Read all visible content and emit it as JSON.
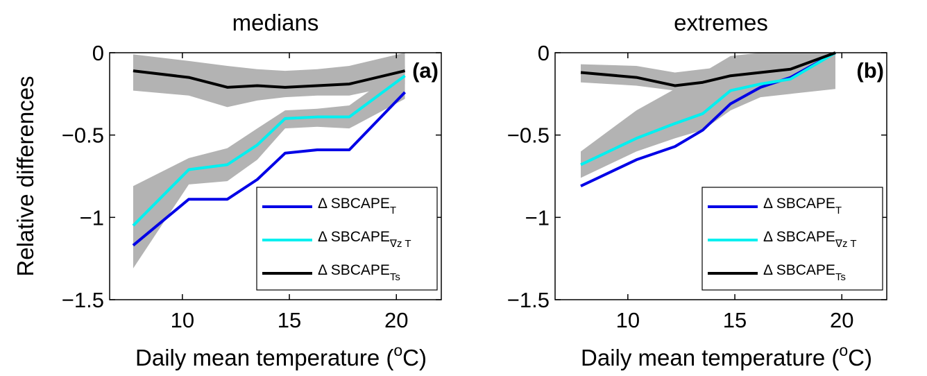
{
  "chart_data": [
    {
      "type": "line",
      "title": "medians",
      "annotation": "(a)",
      "y_label": "Relative differences",
      "x_label": {
        "text": "Daily mean temperature (",
        "sup": "o",
        "end": "C)"
      },
      "xlim": [
        6.6,
        22.1
      ],
      "xticks": [
        10,
        15,
        20
      ],
      "ylim": [
        -1.5,
        0
      ],
      "yticks": [
        {
          "value": -1.5,
          "label": "−1.5"
        },
        {
          "value": -1,
          "label": "−1"
        },
        {
          "value": -0.5,
          "label": "−0.5"
        },
        0
      ],
      "x": [
        7.7,
        10.3,
        12.1,
        13.5,
        14.8,
        16.3,
        17.8,
        20.4
      ],
      "bands": [
        {
          "color": "#b3b3b3",
          "lower": [
            -0.23,
            -0.26,
            -0.33,
            -0.29,
            -0.27,
            -0.26,
            -0.26,
            -0.19
          ],
          "upper": [
            -0.01,
            -0.05,
            -0.08,
            -0.1,
            -0.11,
            -0.1,
            -0.08,
            0
          ]
        },
        {
          "color": "#b3b3b3",
          "lower": [
            -1.31,
            -0.8,
            -0.78,
            -0.65,
            -0.46,
            -0.45,
            -0.46,
            -0.28
          ],
          "upper": [
            -0.81,
            -0.64,
            -0.58,
            -0.46,
            -0.35,
            -0.34,
            -0.32,
            -0.08
          ]
        }
      ],
      "series": [
        {
          "name": "Δ SBCAPE",
          "sub": "T",
          "color": "#0000e6",
          "values": [
            -1.17,
            -0.89,
            -0.89,
            -0.77,
            -0.61,
            -0.59,
            -0.59,
            -0.24
          ]
        },
        {
          "name": "Δ SBCAPE",
          "sub": "∇z T",
          "color": "#00f0f0",
          "values": [
            -1.05,
            -0.71,
            -0.68,
            -0.56,
            -0.4,
            -0.39,
            -0.39,
            -0.14
          ]
        },
        {
          "name": "Δ SBCAPE",
          "sub": "Ts",
          "color": "#000000",
          "values": [
            -0.11,
            -0.15,
            -0.21,
            -0.2,
            -0.21,
            -0.2,
            -0.19,
            -0.11
          ]
        }
      ]
    },
    {
      "type": "line",
      "title": "extremes",
      "annotation": "(b)",
      "x_label": {
        "text": "Daily mean temperature (",
        "sup": "o",
        "end": "C)"
      },
      "xlim": [
        6.6,
        22.1
      ],
      "xticks": [
        10,
        15,
        20
      ],
      "ylim": [
        -1.5,
        0
      ],
      "yticks": [
        {
          "value": -1.5,
          "label": "−1.5"
        },
        {
          "value": -1,
          "label": "−1"
        },
        {
          "value": -0.5,
          "label": "−0.5"
        },
        0
      ],
      "x": [
        7.8,
        10.4,
        12.2,
        13.5,
        14.8,
        16.2,
        17.6,
        19.7
      ],
      "bands": [
        {
          "color": "#b3b3b3",
          "lower": [
            -0.76,
            -0.6,
            -0.52,
            -0.47,
            -0.35,
            -0.27,
            -0.25,
            -0.22
          ],
          "upper": [
            -0.6,
            -0.35,
            -0.22,
            -0.12,
            -0.02,
            0,
            0,
            0
          ]
        },
        {
          "color": "#b3b3b3",
          "lower": [
            -0.18,
            -0.2,
            -0.23,
            -0.21,
            -0.17,
            -0.14,
            -0.12,
            -0.05
          ],
          "upper": [
            -0.07,
            -0.08,
            -0.12,
            -0.1,
            -0.08,
            -0.06,
            -0.04,
            0
          ]
        }
      ],
      "series": [
        {
          "name": "Δ SBCAPE",
          "sub": "T",
          "color": "#0000e6",
          "values": [
            -0.81,
            -0.65,
            -0.57,
            -0.47,
            -0.31,
            -0.21,
            -0.15,
            0
          ]
        },
        {
          "name": "Δ SBCAPE",
          "sub": "∇z T",
          "color": "#00f0f0",
          "values": [
            -0.68,
            -0.52,
            -0.43,
            -0.37,
            -0.23,
            -0.19,
            -0.16,
            0
          ]
        },
        {
          "name": "Δ SBCAPE",
          "sub": "Ts",
          "color": "#000000",
          "values": [
            -0.12,
            -0.15,
            -0.2,
            -0.18,
            -0.14,
            -0.12,
            -0.1,
            0
          ]
        }
      ]
    }
  ]
}
